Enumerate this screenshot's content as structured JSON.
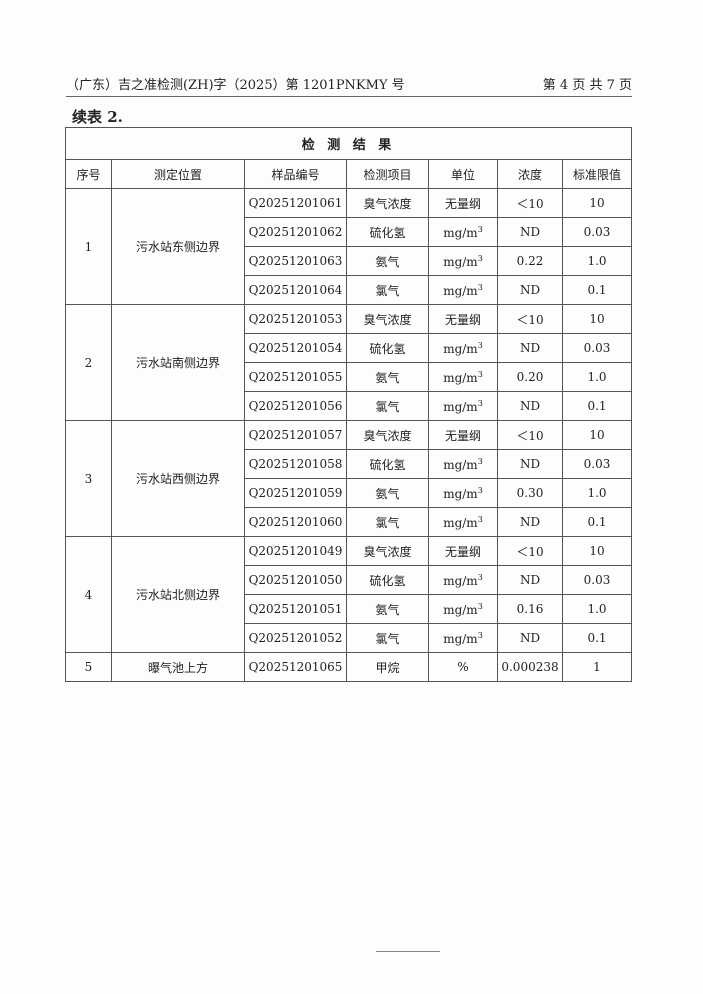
{
  "header": {
    "doc_no": "（广东）吉之准检测(ZH)字（2025）第 1201PNKMY 号",
    "page": "第 4 页 共 7 页"
  },
  "subtitle": "续表 2.",
  "table": {
    "title": "检 测 结 果",
    "columns": [
      "序号",
      "测定位置",
      "样品编号",
      "检测项目",
      "单位",
      "浓度",
      "标准限值"
    ],
    "groups": [
      {
        "no": "1",
        "location": "污水站东侧边界",
        "rows": [
          [
            "Q20251201061",
            "臭气浓度",
            "无量纲",
            "＜10",
            "10"
          ],
          [
            "Q20251201062",
            "硫化氢",
            "mg/m3",
            "ND",
            "0.03"
          ],
          [
            "Q20251201063",
            "氨气",
            "mg/m3",
            "0.22",
            "1.0"
          ],
          [
            "Q20251201064",
            "氯气",
            "mg/m3",
            "ND",
            "0.1"
          ]
        ]
      },
      {
        "no": "2",
        "location": "污水站南侧边界",
        "rows": [
          [
            "Q20251201053",
            "臭气浓度",
            "无量纲",
            "＜10",
            "10"
          ],
          [
            "Q20251201054",
            "硫化氢",
            "mg/m3",
            "ND",
            "0.03"
          ],
          [
            "Q20251201055",
            "氨气",
            "mg/m3",
            "0.20",
            "1.0"
          ],
          [
            "Q20251201056",
            "氯气",
            "mg/m3",
            "ND",
            "0.1"
          ]
        ]
      },
      {
        "no": "3",
        "location": "污水站西侧边界",
        "rows": [
          [
            "Q20251201057",
            "臭气浓度",
            "无量纲",
            "＜10",
            "10"
          ],
          [
            "Q20251201058",
            "硫化氢",
            "mg/m3",
            "ND",
            "0.03"
          ],
          [
            "Q20251201059",
            "氨气",
            "mg/m3",
            "0.30",
            "1.0"
          ],
          [
            "Q20251201060",
            "氯气",
            "mg/m3",
            "ND",
            "0.1"
          ]
        ]
      },
      {
        "no": "4",
        "location": "污水站北侧边界",
        "rows": [
          [
            "Q20251201049",
            "臭气浓度",
            "无量纲",
            "＜10",
            "10"
          ],
          [
            "Q20251201050",
            "硫化氢",
            "mg/m3",
            "ND",
            "0.03"
          ],
          [
            "Q20251201051",
            "氨气",
            "mg/m3",
            "0.16",
            "1.0"
          ],
          [
            "Q20251201052",
            "氯气",
            "mg/m3",
            "ND",
            "0.1"
          ]
        ]
      },
      {
        "no": "5",
        "location": "曝气池上方",
        "rows": [
          [
            "Q20251201065",
            "甲烷",
            "%",
            "0.000238",
            "1"
          ]
        ]
      }
    ]
  }
}
